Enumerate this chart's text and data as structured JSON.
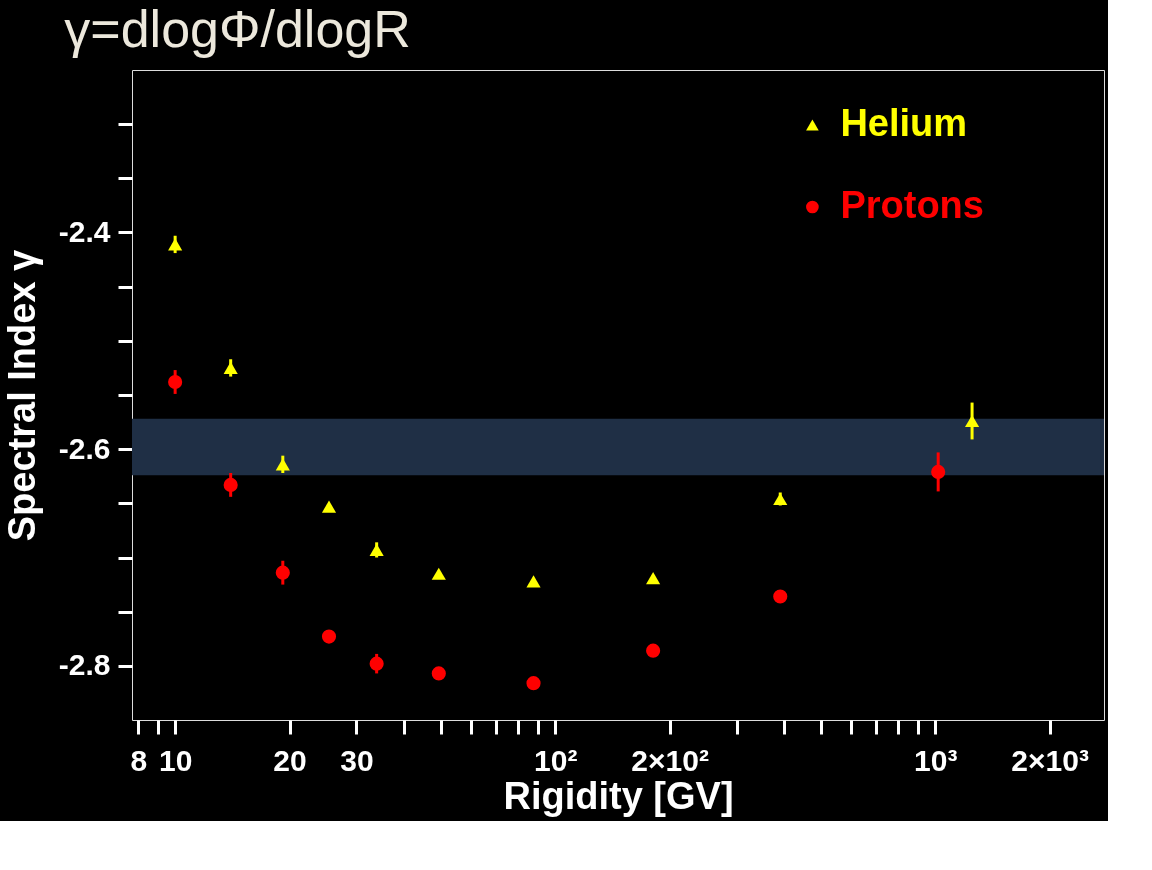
{
  "chart_data": {
    "type": "scatter",
    "title": "γ=dlogΦ/dlogR",
    "xlabel": "Rigidity [GV]",
    "ylabel": "Spectral Index γ",
    "log": "x",
    "grid": false,
    "legend": "top right",
    "xlim": [
      7.7,
      2780
    ],
    "ylim": [
      -2.85,
      -2.25
    ],
    "xticks": [
      {
        "value": 8,
        "label": "8"
      },
      {
        "value": 9,
        "label": null
      },
      10,
      20,
      30,
      {
        "value": 40,
        "label": null
      },
      {
        "value": 50,
        "label": null
      },
      {
        "value": 60,
        "label": null
      },
      {
        "value": 70,
        "label": null
      },
      {
        "value": 80,
        "label": null
      },
      {
        "value": 90,
        "label": null
      },
      {
        "value": 100,
        "label": "10²"
      },
      {
        "value": 200,
        "label": "2×10²"
      },
      {
        "value": 300,
        "label": null
      },
      {
        "value": 400,
        "label": null
      },
      {
        "value": 500,
        "label": null
      },
      {
        "value": 600,
        "label": null
      },
      {
        "value": 700,
        "label": null
      },
      {
        "value": 800,
        "label": null
      },
      {
        "value": 900,
        "label": null
      },
      {
        "value": 1000,
        "label": "10³"
      },
      {
        "value": 2000,
        "label": "2×10³"
      }
    ],
    "yticks": [
      {
        "value": -2.8,
        "label": "-2.8"
      },
      {
        "value": -2.75,
        "label": null
      },
      {
        "value": -2.7,
        "label": null
      },
      {
        "value": -2.65,
        "label": null
      },
      {
        "value": -2.6,
        "label": "-2.6"
      },
      {
        "value": -2.55,
        "label": null
      },
      {
        "value": -2.5,
        "label": null
      },
      {
        "value": -2.45,
        "label": null
      },
      {
        "value": -2.4,
        "label": "-2.4"
      },
      {
        "value": -2.35,
        "label": null
      },
      {
        "value": -2.3,
        "label": null
      }
    ],
    "bands": [
      {
        "axis": "y",
        "from": -2.624,
        "to": -2.572,
        "color": "#1f2f45"
      }
    ],
    "series": [
      {
        "name": "Helium",
        "color": "#ffff00",
        "marker": "triangle",
        "x": [
          10,
          14.0,
          19.2,
          25.4,
          33.9,
          49.4,
          87.7,
          181,
          391,
          1250
        ],
        "values": [
          -2.411,
          -2.525,
          -2.614,
          -2.653,
          -2.693,
          -2.715,
          -2.722,
          -2.719,
          -2.646,
          -2.574
        ],
        "errors": [
          0.008,
          0.008,
          0.008,
          null,
          0.007,
          null,
          null,
          null,
          0.006,
          0.017
        ]
      },
      {
        "name": "Protons",
        "color": "#ff0000",
        "marker": "circle",
        "x": [
          10,
          14.0,
          19.2,
          25.4,
          33.9,
          49.4,
          87.7,
          181,
          391,
          1018
        ],
        "values": [
          -2.538,
          -2.633,
          -2.714,
          -2.773,
          -2.798,
          -2.807,
          -2.816,
          -2.786,
          -2.736,
          -2.621
        ],
        "errors": [
          0.011,
          0.011,
          0.011,
          null,
          0.009,
          null,
          null,
          null,
          0.006,
          0.018
        ]
      }
    ]
  }
}
